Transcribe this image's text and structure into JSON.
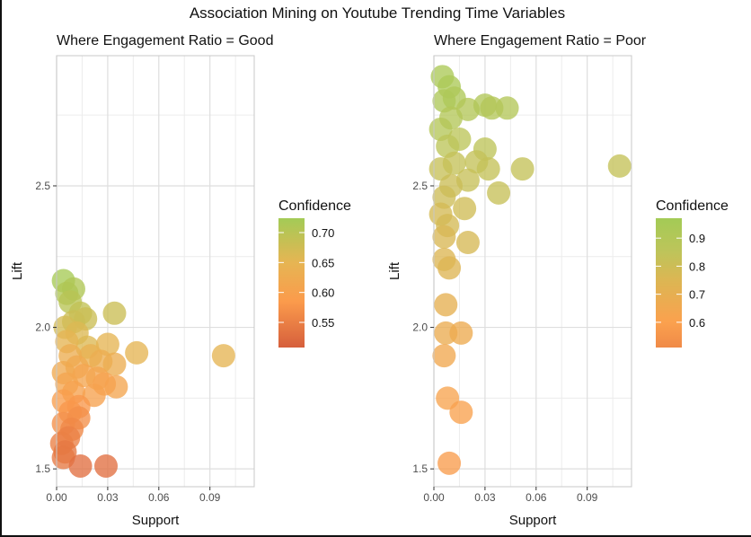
{
  "chart_data": {
    "title": "Association Mining on Youtube Trending Time Variables",
    "type": "scatter",
    "panels": [
      {
        "subtitle": "Where Engagement Ratio = Good",
        "xlabel": "Support",
        "ylabel": "Lift",
        "xlim": [
          0,
          0.116
        ],
        "ylim": [
          1.437,
          2.96
        ],
        "xticks": [
          "0.00",
          "0.03",
          "0.06",
          "0.09"
        ],
        "xtick_values": [
          0,
          0.03,
          0.06,
          0.09
        ],
        "yticks": [
          "1.5",
          "2.0",
          "2.5"
        ],
        "ytick_values": [
          1.5,
          2.0,
          2.5
        ],
        "grid": true,
        "legend": {
          "title": "Confidence",
          "position": "right",
          "range": [
            0.508,
            0.724
          ],
          "breaks": [
            "0.55",
            "0.60",
            "0.65",
            "0.70"
          ],
          "break_values": [
            0.55,
            0.6,
            0.65,
            0.7
          ],
          "colors": [
            [
              0.508,
              "#d65f3c"
            ],
            [
              0.585,
              "#fb9b4c"
            ],
            [
              0.65,
              "#e6b553"
            ],
            [
              0.724,
              "#a3cb56"
            ]
          ]
        },
        "points": [
          [
            0.004,
            2.165,
            0.72
          ],
          [
            0.01,
            2.136,
            0.71
          ],
          [
            0.006,
            2.12,
            0.71
          ],
          [
            0.008,
            2.09,
            0.7
          ],
          [
            0.014,
            2.05,
            0.69
          ],
          [
            0.017,
            2.03,
            0.68
          ],
          [
            0.034,
            2.05,
            0.68
          ],
          [
            0.01,
            2.02,
            0.68
          ],
          [
            0.005,
            2.0,
            0.67
          ],
          [
            0.012,
            1.98,
            0.66
          ],
          [
            0.018,
            1.93,
            0.66
          ],
          [
            0.03,
            1.94,
            0.65
          ],
          [
            0.047,
            1.91,
            0.65
          ],
          [
            0.098,
            1.9,
            0.65
          ],
          [
            0.006,
            1.95,
            0.65
          ],
          [
            0.02,
            1.9,
            0.64
          ],
          [
            0.026,
            1.88,
            0.63
          ],
          [
            0.034,
            1.87,
            0.63
          ],
          [
            0.008,
            1.9,
            0.63
          ],
          [
            0.012,
            1.86,
            0.62
          ],
          [
            0.004,
            1.84,
            0.62
          ],
          [
            0.016,
            1.83,
            0.61
          ],
          [
            0.024,
            1.82,
            0.61
          ],
          [
            0.006,
            1.8,
            0.61
          ],
          [
            0.035,
            1.79,
            0.61
          ],
          [
            0.022,
            1.76,
            0.6
          ],
          [
            0.01,
            1.77,
            0.6
          ],
          [
            0.028,
            1.8,
            0.6
          ],
          [
            0.004,
            1.74,
            0.59
          ],
          [
            0.013,
            1.72,
            0.58
          ],
          [
            0.008,
            1.7,
            0.58
          ],
          [
            0.013,
            1.68,
            0.57
          ],
          [
            0.004,
            1.66,
            0.57
          ],
          [
            0.009,
            1.64,
            0.56
          ],
          [
            0.007,
            1.61,
            0.55
          ],
          [
            0.003,
            1.59,
            0.55
          ],
          [
            0.005,
            1.56,
            0.54
          ],
          [
            0.004,
            1.54,
            0.54
          ],
          [
            0.014,
            1.51,
            0.53
          ],
          [
            0.029,
            1.51,
            0.53
          ]
        ]
      },
      {
        "subtitle": "Where Engagement Ratio = Poor",
        "xlabel": "Support",
        "ylabel": "Lift",
        "xlim": [
          0,
          0.116
        ],
        "ylim": [
          1.437,
          2.96
        ],
        "xticks": [
          "0.00",
          "0.03",
          "0.06",
          "0.09"
        ],
        "xtick_values": [
          0,
          0.03,
          0.06,
          0.09
        ],
        "yticks": [
          "1.5",
          "2.0",
          "2.5"
        ],
        "ytick_values": [
          1.5,
          2.0,
          2.5
        ],
        "grid": true,
        "legend": {
          "title": "Confidence",
          "position": "right",
          "range": [
            0.51,
            0.971
          ],
          "breaks": [
            "0.6",
            "0.7",
            "0.8",
            "0.9"
          ],
          "break_values": [
            0.6,
            0.7,
            0.8,
            0.9
          ],
          "colors": [
            [
              0.51,
              "#f08a48"
            ],
            [
              0.6,
              "#fba14e"
            ],
            [
              0.75,
              "#dcb653"
            ],
            [
              0.85,
              "#bec45a"
            ],
            [
              0.971,
              "#a3cb56"
            ]
          ]
        },
        "points": [
          [
            0.005,
            2.886,
            0.93
          ],
          [
            0.009,
            2.85,
            0.93
          ],
          [
            0.012,
            2.81,
            0.92
          ],
          [
            0.006,
            2.8,
            0.92
          ],
          [
            0.02,
            2.77,
            0.9
          ],
          [
            0.03,
            2.785,
            0.91
          ],
          [
            0.034,
            2.775,
            0.9
          ],
          [
            0.043,
            2.775,
            0.9
          ],
          [
            0.01,
            2.74,
            0.9
          ],
          [
            0.004,
            2.7,
            0.89
          ],
          [
            0.015,
            2.665,
            0.86
          ],
          [
            0.008,
            2.64,
            0.86
          ],
          [
            0.03,
            2.63,
            0.85
          ],
          [
            0.025,
            2.585,
            0.83
          ],
          [
            0.032,
            2.56,
            0.83
          ],
          [
            0.052,
            2.56,
            0.83
          ],
          [
            0.109,
            2.57,
            0.83
          ],
          [
            0.012,
            2.58,
            0.83
          ],
          [
            0.004,
            2.56,
            0.82
          ],
          [
            0.02,
            2.52,
            0.82
          ],
          [
            0.038,
            2.475,
            0.82
          ],
          [
            0.01,
            2.5,
            0.81
          ],
          [
            0.006,
            2.46,
            0.8
          ],
          [
            0.018,
            2.42,
            0.79
          ],
          [
            0.008,
            2.36,
            0.78
          ],
          [
            0.004,
            2.4,
            0.78
          ],
          [
            0.02,
            2.3,
            0.77
          ],
          [
            0.006,
            2.32,
            0.76
          ],
          [
            0.006,
            2.24,
            0.75
          ],
          [
            0.009,
            2.21,
            0.74
          ],
          [
            0.007,
            2.08,
            0.7
          ],
          [
            0.007,
            1.98,
            0.68
          ],
          [
            0.016,
            1.98,
            0.67
          ],
          [
            0.006,
            1.9,
            0.65
          ],
          [
            0.008,
            1.75,
            0.62
          ],
          [
            0.016,
            1.7,
            0.61
          ],
          [
            0.009,
            1.52,
            0.58
          ]
        ]
      }
    ]
  }
}
